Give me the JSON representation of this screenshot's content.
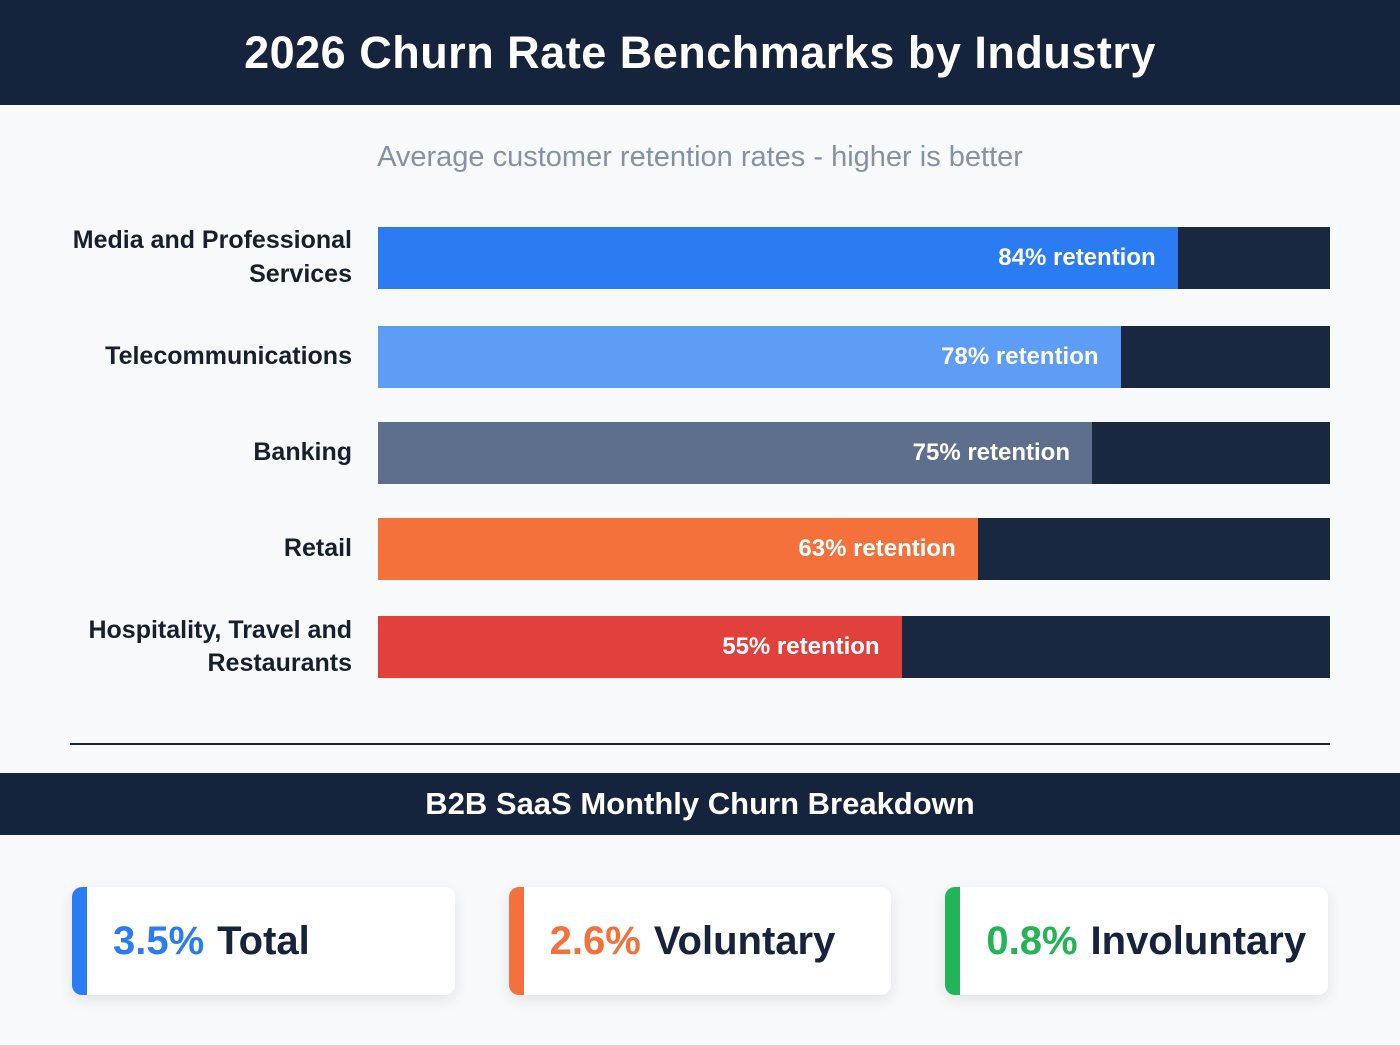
{
  "theme": {
    "navy": "#16233c",
    "track_color": "#1a2740"
  },
  "chart_data": {
    "type": "bar",
    "orientation": "horizontal",
    "title": "2026 Churn Rate Benchmarks by Industry",
    "subtitle": "Average customer retention rates - higher is better",
    "categories": [
      "Media and Professional Services",
      "Telecommunications",
      "Banking",
      "Retail",
      "Hospitality, Travel and Restaurants"
    ],
    "values": [
      84,
      78,
      75,
      63,
      55
    ],
    "value_labels": [
      "84% retention",
      "78% retention",
      "75% retention",
      "63% retention",
      "55% retention"
    ],
    "bar_colors": [
      "#2b7bf3",
      "#5d9df6",
      "#5d6f8c",
      "#f5713c",
      "#e2403c"
    ],
    "track_color": "#1a2740",
    "xlim": [
      0,
      100
    ],
    "unit": "%",
    "legend": "none",
    "grid": false
  },
  "section": {
    "title": "B2B SaaS Monthly Churn Breakdown"
  },
  "stats": {
    "items": [
      {
        "value": "3.5%",
        "label": "Total",
        "color": "#2b7bf3"
      },
      {
        "value": "2.6%",
        "label": "Voluntary",
        "color": "#f5713c"
      },
      {
        "value": "0.8%",
        "label": "Involuntary",
        "color": "#22b455"
      }
    ]
  }
}
